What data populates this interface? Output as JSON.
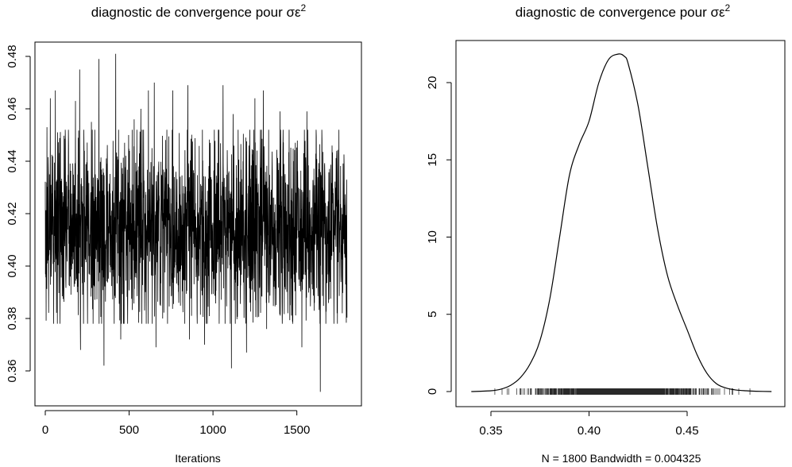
{
  "chart_data": [
    {
      "type": "line",
      "title_main": "diagnostic de convergence pour σε",
      "title_sup": "2",
      "xlabel": "Iterations",
      "ylabel": "",
      "xlim": [
        0,
        1800
      ],
      "ylim": [
        0.35,
        0.485
      ],
      "x_ticks": [
        0,
        500,
        1000,
        1500
      ],
      "x_tick_labels": [
        "0",
        "500",
        "1000",
        "1500"
      ],
      "y_ticks": [
        0.36,
        0.38,
        0.4,
        0.42,
        0.44,
        0.46,
        0.48
      ],
      "y_tick_labels": [
        "0.36",
        "0.38",
        "0.40",
        "0.42",
        "0.44",
        "0.46",
        "0.48"
      ],
      "series": [
        {
          "n": 1800,
          "mean": 0.415,
          "sd": 0.0185,
          "spikes": [
            {
              "x": 10,
              "y": 0.453
            },
            {
              "x": 30,
              "y": 0.464
            },
            {
              "x": 60,
              "y": 0.467
            },
            {
              "x": 120,
              "y": 0.448
            },
            {
              "x": 180,
              "y": 0.463
            },
            {
              "x": 205,
              "y": 0.475
            },
            {
              "x": 210,
              "y": 0.368
            },
            {
              "x": 275,
              "y": 0.455
            },
            {
              "x": 320,
              "y": 0.479
            },
            {
              "x": 350,
              "y": 0.362
            },
            {
              "x": 420,
              "y": 0.481
            },
            {
              "x": 450,
              "y": 0.372
            },
            {
              "x": 530,
              "y": 0.456
            },
            {
              "x": 570,
              "y": 0.46
            },
            {
              "x": 615,
              "y": 0.467
            },
            {
              "x": 650,
              "y": 0.47
            },
            {
              "x": 660,
              "y": 0.369
            },
            {
              "x": 700,
              "y": 0.38
            },
            {
              "x": 760,
              "y": 0.467
            },
            {
              "x": 850,
              "y": 0.469
            },
            {
              "x": 860,
              "y": 0.372
            },
            {
              "x": 950,
              "y": 0.37
            },
            {
              "x": 1060,
              "y": 0.469
            },
            {
              "x": 1110,
              "y": 0.361
            },
            {
              "x": 1120,
              "y": 0.458
            },
            {
              "x": 1200,
              "y": 0.367
            },
            {
              "x": 1250,
              "y": 0.464
            },
            {
              "x": 1300,
              "y": 0.467
            },
            {
              "x": 1320,
              "y": 0.376
            },
            {
              "x": 1400,
              "y": 0.459
            },
            {
              "x": 1530,
              "y": 0.369
            },
            {
              "x": 1560,
              "y": 0.459
            },
            {
              "x": 1640,
              "y": 0.352
            },
            {
              "x": 1650,
              "y": 0.448
            },
            {
              "x": 1710,
              "y": 0.446
            },
            {
              "x": 1740,
              "y": 0.382
            }
          ]
        }
      ]
    },
    {
      "type": "line",
      "title_main": "diagnostic de convergence pour σε",
      "title_sup": "2",
      "xlabel": "N = 1800   Bandwidth = 0.004325",
      "ylabel": "",
      "xlim": [
        0.335,
        0.497
      ],
      "ylim": [
        -0.9,
        22.6
      ],
      "x_ticks": [
        0.35,
        0.4,
        0.45
      ],
      "x_tick_labels": [
        "0.35",
        "0.40",
        "0.45"
      ],
      "y_ticks": [
        0,
        5,
        10,
        15,
        20
      ],
      "y_tick_labels": [
        "0",
        "5",
        "10",
        "15",
        "20"
      ],
      "series": [
        {
          "x": [
            0.34,
            0.35,
            0.355,
            0.36,
            0.365,
            0.37,
            0.375,
            0.38,
            0.385,
            0.39,
            0.395,
            0.4,
            0.405,
            0.41,
            0.415,
            0.418,
            0.42,
            0.425,
            0.43,
            0.435,
            0.44,
            0.445,
            0.45,
            0.455,
            0.46,
            0.465,
            0.47,
            0.475,
            0.48,
            0.485,
            0.493
          ],
          "y": [
            0.0,
            0.05,
            0.15,
            0.4,
            0.9,
            1.8,
            3.3,
            6.0,
            10.0,
            14.0,
            16.0,
            17.5,
            20.0,
            21.5,
            21.85,
            21.7,
            21.2,
            18.5,
            14.5,
            10.5,
            7.5,
            5.6,
            4.0,
            2.4,
            1.2,
            0.5,
            0.22,
            0.1,
            0.05,
            0.02,
            0.0
          ]
        }
      ],
      "rug": {
        "min": 0.352,
        "max": 0.482,
        "center": 0.415,
        "sd": 0.0185,
        "count": 1800
      }
    }
  ]
}
